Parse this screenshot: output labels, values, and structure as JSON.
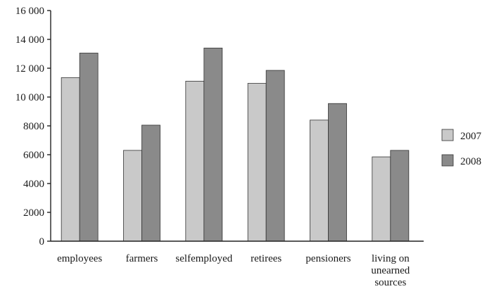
{
  "chart_data": {
    "type": "bar",
    "categories": [
      "employees",
      "farmers",
      "selfemployed",
      "retirees",
      "pensioners",
      "living on unearned sources"
    ],
    "category_lines": [
      [
        "employees"
      ],
      [
        "farmers"
      ],
      [
        "selfemployed"
      ],
      [
        "retirees"
      ],
      [
        "pensioners"
      ],
      [
        "living on",
        "unearned",
        "sources"
      ]
    ],
    "series": [
      {
        "name": "2007",
        "color": "#c9c9c9",
        "values": [
          11350,
          6300,
          11100,
          10950,
          8400,
          5850
        ]
      },
      {
        "name": "2008",
        "color": "#8a8a8a",
        "values": [
          13050,
          8050,
          13400,
          11850,
          9550,
          6300
        ]
      }
    ],
    "y_ticks": [
      {
        "value": 0,
        "label": "0"
      },
      {
        "value": 2000,
        "label": "2000"
      },
      {
        "value": 4000,
        "label": "4000"
      },
      {
        "value": 6000,
        "label": "6000"
      },
      {
        "value": 8000,
        "label": "8000"
      },
      {
        "value": 10000,
        "label": "10 000"
      },
      {
        "value": 12000,
        "label": "12 000"
      },
      {
        "value": 14000,
        "label": "14 000"
      },
      {
        "value": 16000,
        "label": "16 000"
      }
    ],
    "ylim": [
      0,
      16000
    ],
    "title": "",
    "xlabel": "",
    "ylabel": "",
    "grid": false,
    "legend": "right"
  }
}
